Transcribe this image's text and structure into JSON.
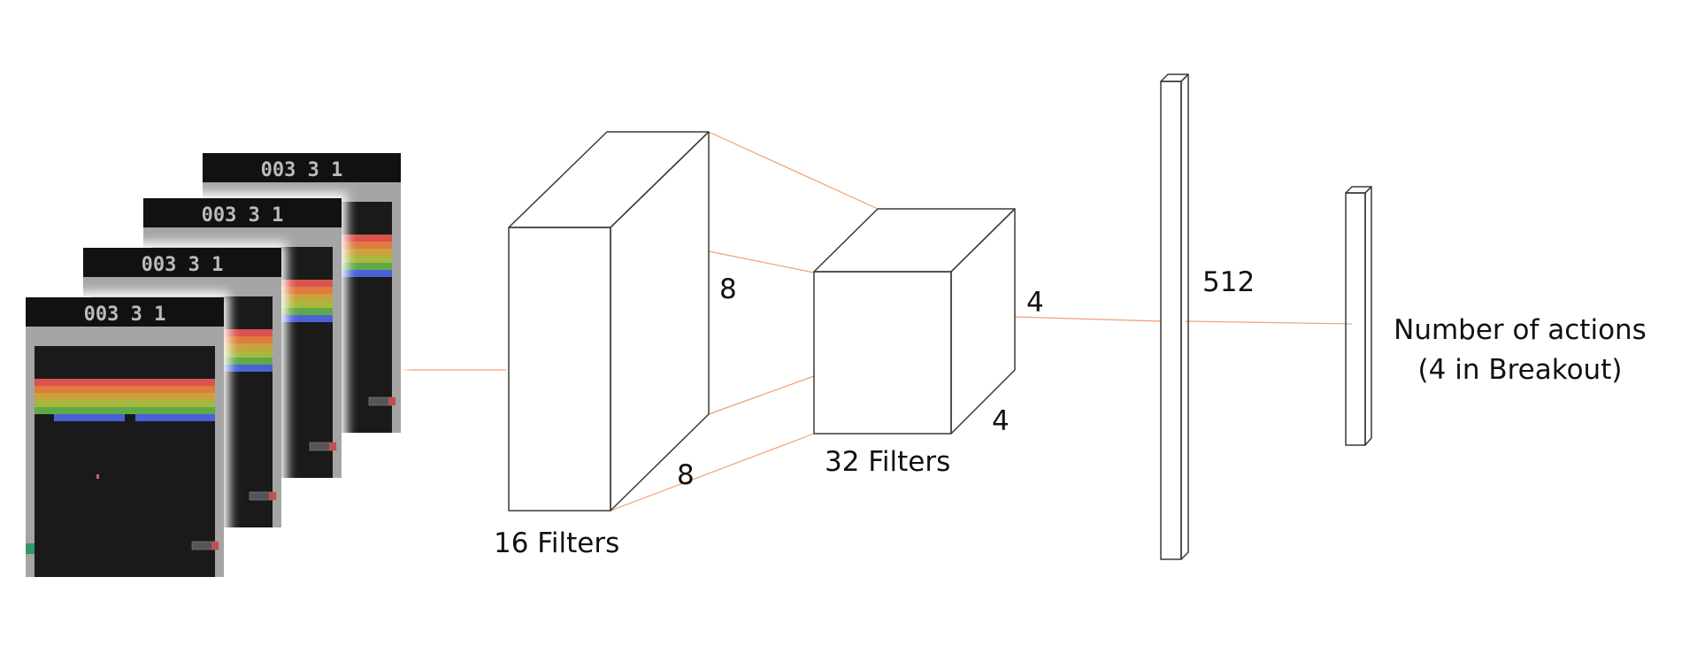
{
  "labels": {
    "conv1_filters": "16 Filters",
    "conv1_kernel_a": "8",
    "conv1_kernel_b": "8",
    "conv2_filters": "32 Filters",
    "conv2_kernel_a": "4",
    "conv2_kernel_b": "4",
    "fc_units": "512",
    "output_line1": "Number of actions",
    "output_line2": "(4 in Breakout)"
  },
  "frames": {
    "count": 4,
    "score_text": "003  3  1"
  },
  "colors": {
    "front": "#ED7D31",
    "top": "#F0975C",
    "side": "#BE6428",
    "edge": "#3A3A3A",
    "connector": "#F0A070",
    "screen_bg": "#161616",
    "wall": "#A5A5A5",
    "brick_rows": [
      "#D9534F",
      "#E07A3E",
      "#C9A23C",
      "#A8B83E",
      "#5EAA48"
    ],
    "paddle": "#4B62D6"
  },
  "icons": {
    "game_frame": "breakout-frame-icon"
  }
}
